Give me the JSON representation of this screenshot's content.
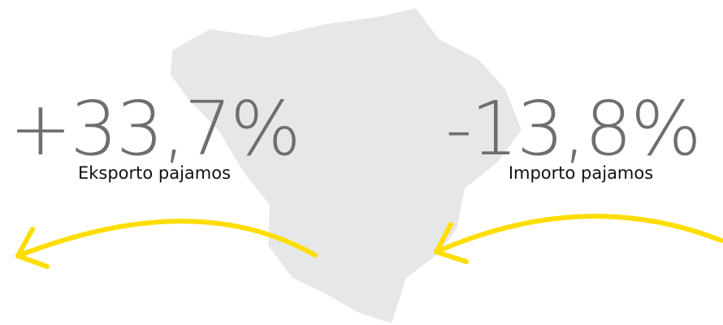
{
  "stats": [
    {
      "value": "+33,7%",
      "label": "Eksporto pajamos"
    },
    {
      "value": "-13,8%",
      "label": "Importo pajamos"
    }
  ]
}
